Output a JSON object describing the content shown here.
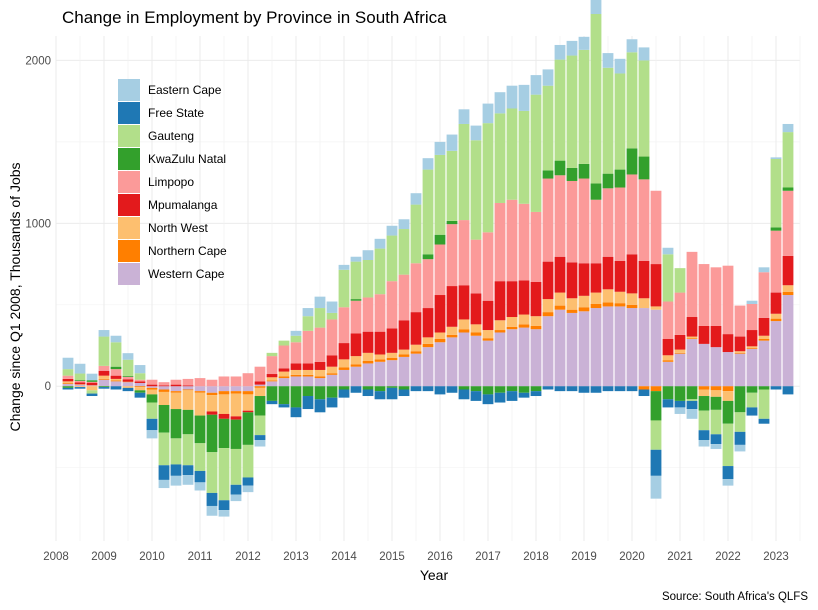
{
  "chart_data": {
    "type": "bar",
    "stacked": true,
    "title": "Change in Employment by Province in South Africa",
    "xlabel": "Year",
    "ylabel": "Change since Q1 2008, Thousands of Jobs",
    "caption": "Source: South Africa's QLFS",
    "xlim": [
      2008,
      2023.5
    ],
    "ylim": [
      -950,
      2150
    ],
    "x_ticks": [
      2008,
      2009,
      2010,
      2011,
      2012,
      2013,
      2014,
      2015,
      2016,
      2017,
      2018,
      2019,
      2020,
      2021,
      2022,
      2023
    ],
    "y_ticks": [
      0,
      1000,
      2000
    ],
    "legend_position": "top-left",
    "colors": {
      "Eastern Cape": "#a6cee3",
      "Free State": "#1f78b4",
      "Gauteng": "#b2df8a",
      "KwaZulu Natal": "#33a02c",
      "Limpopo": "#fb9a99",
      "Mpumalanga": "#e31a1c",
      "North West": "#fdbf6f",
      "Northern Cape": "#ff7f00",
      "Western Cape": "#cab2d6"
    },
    "legend": [
      "Eastern Cape",
      "Free State",
      "Gauteng",
      "KwaZulu Natal",
      "Limpopo",
      "Mpumalanga",
      "North West",
      "Northern Cape",
      "Western Cape"
    ],
    "quarters": [
      "2008Q2",
      "2008Q3",
      "2008Q4",
      "2009Q1",
      "2009Q2",
      "2009Q3",
      "2009Q4",
      "2010Q1",
      "2010Q2",
      "2010Q3",
      "2010Q4",
      "2011Q1",
      "2011Q2",
      "2011Q3",
      "2011Q4",
      "2012Q1",
      "2012Q2",
      "2012Q3",
      "2012Q4",
      "2013Q1",
      "2013Q2",
      "2013Q3",
      "2013Q4",
      "2014Q1",
      "2014Q2",
      "2014Q3",
      "2014Q4",
      "2015Q1",
      "2015Q2",
      "2015Q3",
      "2015Q4",
      "2016Q1",
      "2016Q2",
      "2016Q3",
      "2016Q4",
      "2017Q1",
      "2017Q2",
      "2017Q3",
      "2017Q4",
      "2018Q1",
      "2018Q2",
      "2018Q3",
      "2018Q4",
      "2019Q1",
      "2019Q2",
      "2019Q3",
      "2019Q4",
      "2020Q1",
      "2020Q2",
      "2020Q3",
      "2020Q4",
      "2021Q1",
      "2021Q2",
      "2021Q3",
      "2021Q4",
      "2022Q1",
      "2022Q2",
      "2022Q3",
      "2022Q4",
      "2023Q1",
      "2023Q2"
    ],
    "x": [
      2008.25,
      2008.5,
      2008.75,
      2009,
      2009.25,
      2009.5,
      2009.75,
      2010,
      2010.25,
      2010.5,
      2010.75,
      2011,
      2011.25,
      2011.5,
      2011.75,
      2012,
      2012.25,
      2012.5,
      2012.75,
      2013,
      2013.25,
      2013.5,
      2013.75,
      2014,
      2014.25,
      2014.5,
      2014.75,
      2015,
      2015.25,
      2015.5,
      2015.75,
      2016,
      2016.25,
      2016.5,
      2016.75,
      2017,
      2017.25,
      2017.5,
      2017.75,
      2018,
      2018.25,
      2018.5,
      2018.75,
      2019,
      2019.25,
      2019.5,
      2019.75,
      2020,
      2020.25,
      2020.5,
      2020.75,
      2021,
      2021.25,
      2021.5,
      2021.75,
      2022,
      2022.25,
      2022.5,
      2022.75,
      2023,
      2023.25
    ],
    "series": [
      {
        "name": "Western Cape",
        "values": [
          15,
          10,
          5,
          40,
          30,
          25,
          20,
          -10,
          -20,
          -30,
          -20,
          -30,
          -40,
          -30,
          -30,
          -30,
          10,
          30,
          50,
          60,
          60,
          50,
          70,
          100,
          120,
          140,
          150,
          160,
          180,
          200,
          240,
          270,
          300,
          330,
          310,
          280,
          330,
          350,
          360,
          350,
          430,
          470,
          450,
          460,
          480,
          490,
          490,
          480,
          480,
          470,
          150,
          200,
          290,
          260,
          240,
          210,
          200,
          230,
          280,
          400,
          560
        ]
      },
      {
        "name": "Northern Cape",
        "values": [
          5,
          3,
          2,
          5,
          5,
          3,
          -5,
          -10,
          -15,
          -10,
          -5,
          -10,
          -15,
          -20,
          -15,
          -20,
          -10,
          5,
          10,
          10,
          10,
          10,
          10,
          15,
          15,
          15,
          15,
          15,
          15,
          15,
          20,
          20,
          15,
          20,
          20,
          15,
          15,
          15,
          20,
          20,
          25,
          25,
          20,
          25,
          25,
          25,
          20,
          20,
          -20,
          -30,
          10,
          5,
          5,
          -20,
          -25,
          -30,
          5,
          5,
          10,
          15,
          20
        ]
      },
      {
        "name": "North West",
        "values": [
          10,
          -5,
          -25,
          20,
          10,
          -10,
          -20,
          -30,
          -80,
          -100,
          -120,
          -140,
          -100,
          -120,
          -140,
          -100,
          -50,
          20,
          30,
          30,
          30,
          40,
          40,
          50,
          50,
          50,
          30,
          30,
          30,
          40,
          40,
          40,
          50,
          60,
          50,
          50,
          60,
          60,
          60,
          60,
          80,
          80,
          70,
          70,
          70,
          80,
          70,
          70,
          60,
          20,
          30,
          20,
          10,
          -40,
          -40,
          -60,
          10,
          10,
          20,
          30,
          40
        ]
      },
      {
        "name": "Mpumalanga",
        "values": [
          15,
          10,
          15,
          30,
          20,
          15,
          10,
          10,
          5,
          10,
          5,
          0,
          -20,
          -30,
          -20,
          -10,
          20,
          20,
          20,
          40,
          40,
          50,
          70,
          100,
          140,
          130,
          140,
          150,
          180,
          200,
          180,
          230,
          250,
          210,
          190,
          180,
          240,
          220,
          210,
          210,
          230,
          220,
          220,
          200,
          180,
          200,
          190,
          240,
          230,
          260,
          100,
          90,
          120,
          110,
          130,
          110,
          90,
          100,
          110,
          130,
          180
        ]
      },
      {
        "name": "Limpopo",
        "values": [
          20,
          10,
          5,
          30,
          40,
          15,
          10,
          30,
          20,
          30,
          40,
          50,
          40,
          60,
          60,
          80,
          90,
          110,
          140,
          130,
          200,
          210,
          220,
          220,
          200,
          210,
          230,
          290,
          280,
          300,
          300,
          310,
          380,
          400,
          330,
          420,
          480,
          500,
          470,
          430,
          510,
          500,
          500,
          520,
          390,
          420,
          450,
          490,
          500,
          450,
          230,
          260,
          400,
          380,
          360,
          420,
          190,
          160,
          280,
          380,
          400
        ]
      },
      {
        "name": "KwaZulu Natal",
        "values": [
          -10,
          5,
          10,
          -5,
          15,
          5,
          -15,
          -50,
          -170,
          -180,
          -150,
          -170,
          -230,
          -180,
          -180,
          -200,
          -120,
          -90,
          -110,
          -130,
          -60,
          -80,
          -70,
          -20,
          10,
          -20,
          -30,
          -10,
          -20,
          0,
          30,
          60,
          20,
          -20,
          -30,
          -50,
          -40,
          -30,
          -40,
          -30,
          50,
          90,
          80,
          90,
          100,
          90,
          110,
          160,
          140,
          -180,
          -80,
          -90,
          -80,
          -90,
          -80,
          -140,
          -160,
          -40,
          -20,
          20,
          20
        ]
      },
      {
        "name": "Gauteng",
        "values": [
          40,
          40,
          -20,
          180,
          150,
          100,
          40,
          -100,
          -200,
          -160,
          -190,
          -170,
          -250,
          -320,
          -220,
          -200,
          -120,
          20,
          30,
          40,
          90,
          120,
          40,
          230,
          230,
          230,
          280,
          280,
          280,
          360,
          520,
          490,
          430,
          590,
          610,
          670,
          550,
          560,
          570,
          720,
          520,
          620,
          690,
          700,
          1040,
          650,
          590,
          590,
          590,
          -180,
          290,
          150,
          -10,
          -120,
          -150,
          -260,
          -120,
          -90,
          -180,
          420,
          340
        ]
      },
      {
        "name": "Free State",
        "values": [
          -10,
          -10,
          -15,
          -10,
          -20,
          -20,
          -30,
          -70,
          -90,
          -70,
          -60,
          -70,
          -80,
          -60,
          -60,
          -50,
          -30,
          -20,
          -20,
          -60,
          -80,
          -80,
          -60,
          -50,
          -40,
          -40,
          -50,
          -70,
          -40,
          -30,
          -30,
          -50,
          -40,
          -60,
          -60,
          -60,
          -60,
          -60,
          -30,
          -30,
          -20,
          -30,
          -30,
          -40,
          -40,
          -30,
          -30,
          -30,
          -40,
          -160,
          -50,
          -40,
          -50,
          -60,
          -60,
          -80,
          -80,
          -50,
          -30,
          -20,
          -50
        ]
      },
      {
        "name": "Eastern Cape",
        "values": [
          70,
          60,
          40,
          40,
          40,
          40,
          50,
          -50,
          -50,
          -60,
          -60,
          -50,
          -60,
          -40,
          -40,
          -40,
          -40,
          0,
          0,
          30,
          50,
          70,
          70,
          30,
          30,
          60,
          60,
          60,
          60,
          70,
          70,
          80,
          100,
          90,
          90,
          120,
          130,
          140,
          160,
          120,
          100,
          90,
          90,
          80,
          90,
          90,
          90,
          80,
          80,
          -140,
          40,
          -40,
          -60,
          -40,
          -30,
          -40,
          -40,
          20,
          30,
          10,
          50
        ]
      }
    ]
  }
}
